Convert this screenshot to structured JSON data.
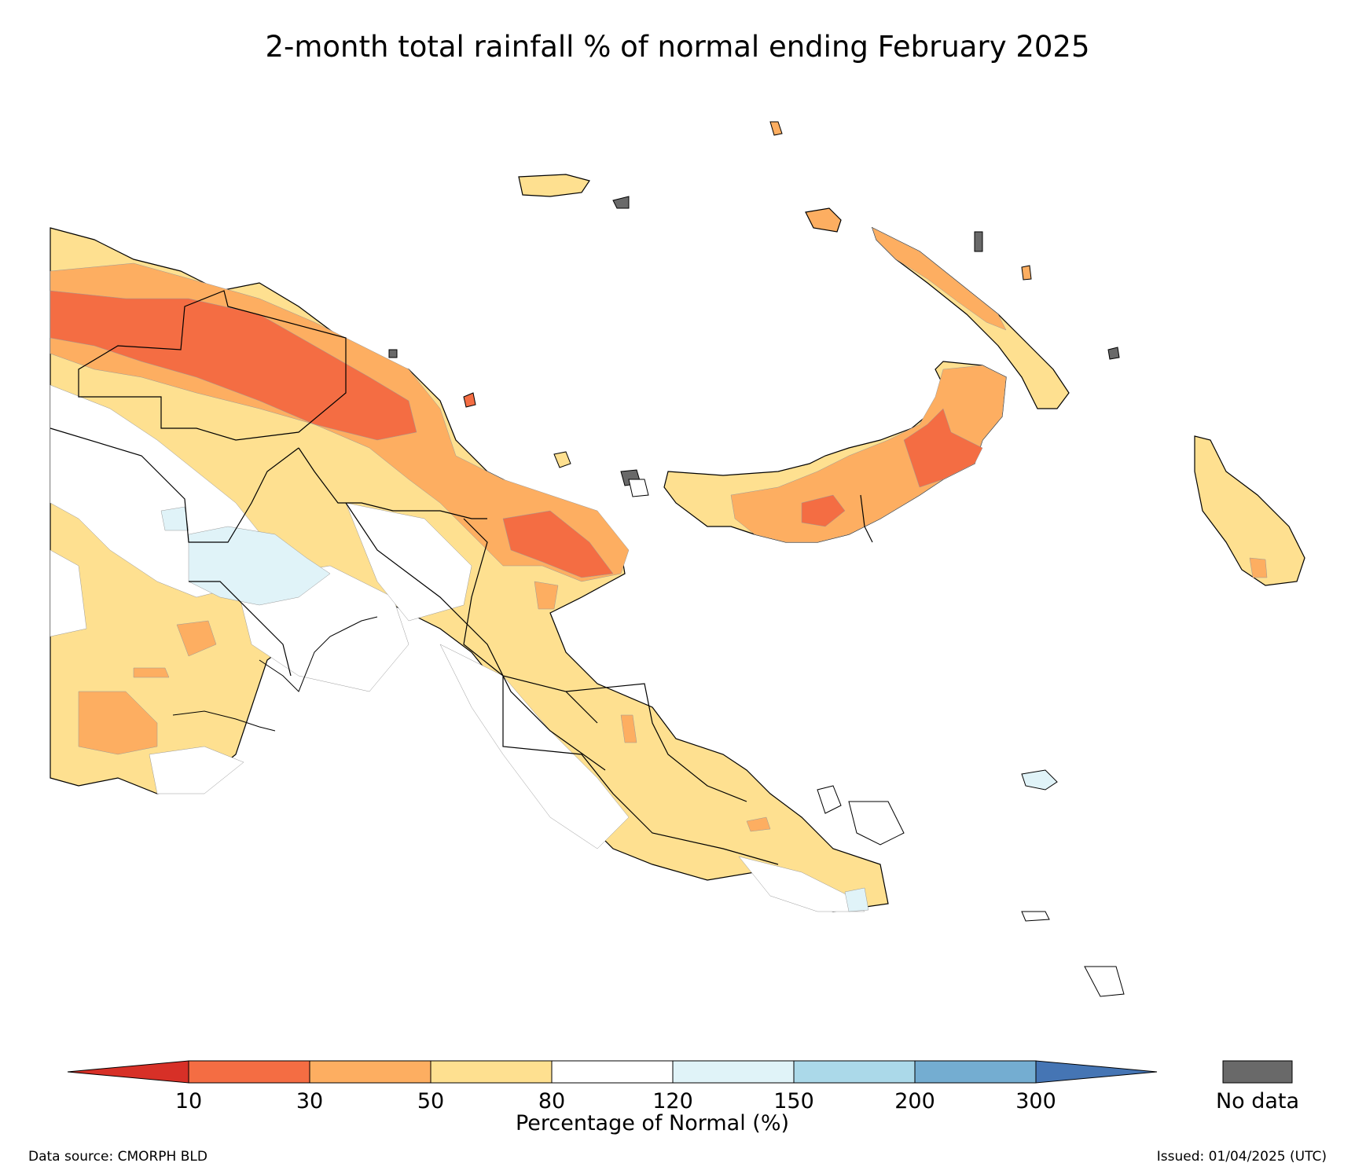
{
  "title": "2-month total rainfall % of normal ending February 2025",
  "colors": {
    "lt10": "#d73027",
    "c10_30": "#f46d43",
    "c30_50": "#fdae61",
    "c50_80": "#fee090",
    "c80_120": "#ffffff",
    "c120_150": "#e0f3f8",
    "c150_200": "#abd9e9",
    "c200_300": "#74add1",
    "gt300": "#4575b4",
    "nodata": "#696969"
  },
  "colorbar": {
    "title": "Percentage of Normal (%)",
    "ticks": [
      "10",
      "30",
      "50",
      "80",
      "120",
      "150",
      "200",
      "300"
    ],
    "nodata_label": "No data"
  },
  "footer": {
    "source": "Data source: CMORPH BLD",
    "issued": "Issued: 01/04/2025 (UTC)"
  }
}
